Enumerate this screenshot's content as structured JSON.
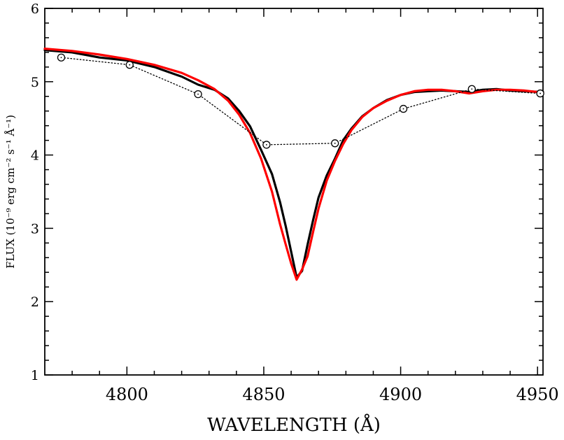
{
  "chart_data": {
    "type": "line",
    "title": "",
    "xlabel": "WAVELENGTH (Å)",
    "ylabel": "FLUX (10⁻⁹ erg cm⁻² s⁻¹ Å⁻¹)",
    "xlim": [
      4770,
      4952
    ],
    "ylim": [
      1,
      6
    ],
    "x_ticks": [
      4800,
      4850,
      4900,
      4950
    ],
    "x_tick_labels": [
      "4800",
      "4850",
      "4900",
      "4950"
    ],
    "y_ticks": [
      1,
      2,
      3,
      4,
      5,
      6
    ],
    "y_tick_labels": [
      "1",
      "2",
      "3",
      "4",
      "5",
      "6"
    ],
    "grid": false,
    "series": [
      {
        "style": "solid",
        "color": "#000000",
        "x": [
          4770,
          4780,
          4790,
          4800,
          4810,
          4820,
          4826,
          4832,
          4837,
          4841,
          4845,
          4849,
          4853,
          4856,
          4858,
          4860,
          4862,
          4864,
          4866,
          4868,
          4870,
          4873,
          4876,
          4879,
          4882,
          4886,
          4890,
          4895,
          4900,
          4905,
          4910,
          4915,
          4920,
          4925,
          4930,
          4935,
          4940,
          4945,
          4952
        ],
        "y": [
          5.43,
          5.4,
          5.33,
          5.29,
          5.2,
          5.07,
          4.96,
          4.89,
          4.77,
          4.6,
          4.39,
          4.07,
          3.74,
          3.35,
          3.03,
          2.68,
          2.33,
          2.42,
          2.78,
          3.11,
          3.42,
          3.72,
          3.95,
          4.2,
          4.36,
          4.53,
          4.64,
          4.75,
          4.82,
          4.86,
          4.87,
          4.88,
          4.87,
          4.86,
          4.89,
          4.9,
          4.88,
          4.87,
          4.86
        ]
      },
      {
        "style": "solid",
        "color": "#ff0000",
        "x": [
          4770,
          4780,
          4790,
          4800,
          4810,
          4820,
          4826,
          4832,
          4837,
          4841,
          4845,
          4849,
          4853,
          4856,
          4858,
          4860,
          4862,
          4864,
          4866,
          4868,
          4870,
          4873,
          4876,
          4879,
          4882,
          4886,
          4890,
          4895,
          4900,
          4905,
          4910,
          4915,
          4920,
          4925,
          4930,
          4935,
          4940,
          4945,
          4952
        ],
        "y": [
          5.45,
          5.42,
          5.37,
          5.31,
          5.23,
          5.12,
          5.02,
          4.9,
          4.74,
          4.55,
          4.3,
          3.95,
          3.5,
          3.05,
          2.78,
          2.52,
          2.3,
          2.44,
          2.62,
          2.95,
          3.27,
          3.65,
          3.92,
          4.15,
          4.34,
          4.52,
          4.64,
          4.74,
          4.82,
          4.87,
          4.89,
          4.89,
          4.87,
          4.84,
          4.87,
          4.89,
          4.89,
          4.88,
          4.85
        ]
      },
      {
        "style": "dotted",
        "marker": "open-circle",
        "color": "#000000",
        "x": [
          4776,
          4801,
          4826,
          4851,
          4876,
          4901,
          4926,
          4951
        ],
        "y": [
          5.33,
          5.23,
          4.83,
          4.14,
          4.16,
          4.63,
          4.9,
          4.84
        ]
      }
    ]
  }
}
